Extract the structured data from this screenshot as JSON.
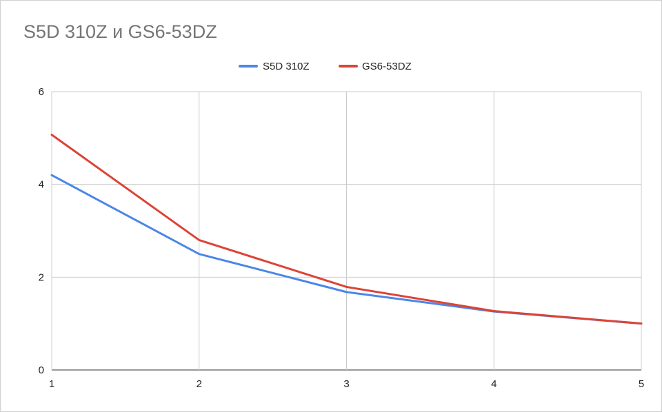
{
  "chart_data": {
    "type": "line",
    "title": "S5D 310Z и GS6-53DZ",
    "xlabel": "",
    "ylabel": "",
    "x": [
      1,
      2,
      3,
      4,
      5
    ],
    "xlim": [
      1,
      5
    ],
    "ylim": [
      0,
      6
    ],
    "y_ticks": [
      0,
      2,
      4,
      6
    ],
    "x_ticks": [
      1,
      2,
      3,
      4,
      5
    ],
    "grid": true,
    "legend_position": "top",
    "series": [
      {
        "name": "S5D 310Z",
        "color": "#4a86e8",
        "values": [
          4.2,
          2.5,
          1.68,
          1.26,
          1.0
        ]
      },
      {
        "name": "GS6-53DZ",
        "color": "#db4437",
        "values": [
          5.07,
          2.8,
          1.79,
          1.27,
          1.0
        ]
      }
    ]
  }
}
